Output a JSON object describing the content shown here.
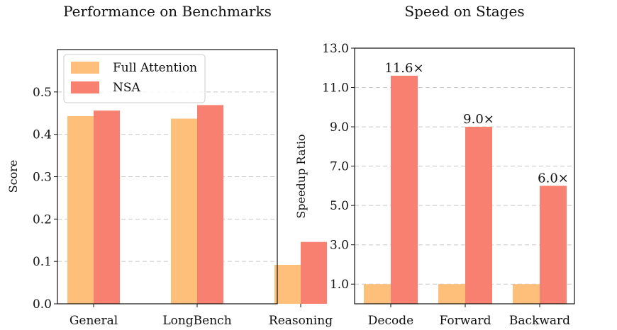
{
  "colors": {
    "full_attention": "#FDBF79",
    "nsa": "#F88070"
  },
  "chart_data": [
    {
      "type": "bar",
      "title": "Performance on Benchmarks",
      "xlabel": "",
      "ylabel": "Score",
      "categories": [
        "General",
        "LongBench",
        "Reasoning"
      ],
      "series": [
        {
          "name": "Full Attention",
          "values": [
            0.443,
            0.437,
            0.092
          ]
        },
        {
          "name": "NSA",
          "values": [
            0.456,
            0.469,
            0.146
          ]
        }
      ],
      "ylim": [
        0,
        0.6
      ],
      "yticks": [
        0.0,
        0.1,
        0.2,
        0.3,
        0.4,
        0.5
      ],
      "ytick_labels": [
        "0.0",
        "0.1",
        "0.2",
        "0.3",
        "0.4",
        "0.5"
      ],
      "legend": "top-left",
      "grid": true
    },
    {
      "type": "bar",
      "title": "Speed on Stages",
      "xlabel": "",
      "ylabel": "Speedup Ratio",
      "categories": [
        "Decode",
        "Forward",
        "Backward"
      ],
      "series": [
        {
          "name": "Full Attention",
          "values": [
            1.0,
            1.0,
            1.0
          ]
        },
        {
          "name": "NSA",
          "values": [
            11.6,
            9.0,
            6.0
          ]
        }
      ],
      "data_labels": [
        "11.6×",
        "9.0×",
        "6.0×"
      ],
      "ylim": [
        0,
        13.0
      ],
      "yticks": [
        1.0,
        3.0,
        5.0,
        7.0,
        9.0,
        11.0,
        13.0
      ],
      "ytick_labels": [
        "1.0",
        "3.0",
        "5.0",
        "7.0",
        "9.0",
        "11.0",
        "13.0"
      ],
      "grid": true
    }
  ]
}
